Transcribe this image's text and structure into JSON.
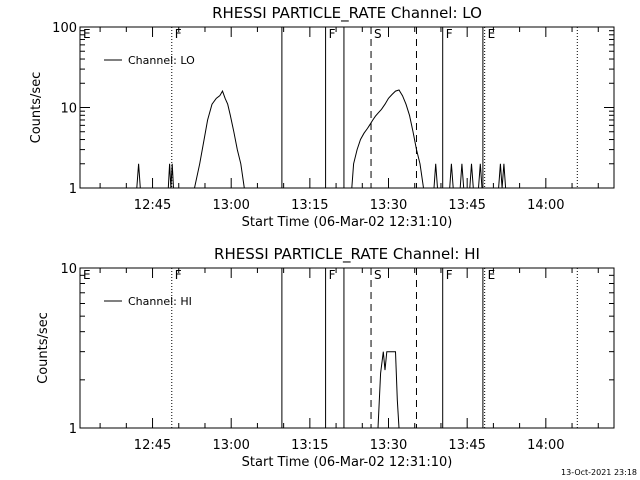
{
  "footer": {
    "timestamp": "13-Oct-2021 23:18"
  },
  "x_axis": {
    "label": "Start Time (06-Mar-02 12:31:10)",
    "tick_labels": [
      "12:45",
      "13:00",
      "13:15",
      "13:30",
      "13:45",
      "14:00"
    ]
  },
  "chart_data": [
    {
      "type": "line",
      "title": "RHESSI PARTICLE_RATE Channel: LO",
      "xlabel": "Start Time (06-Mar-02 12:31:10)",
      "ylabel": "Counts/sec",
      "y_scale": "log",
      "ylim": [
        1,
        100
      ],
      "y_tick_labels": [
        "1",
        "10",
        "100"
      ],
      "xlim": [
        "12:31:10",
        "14:13:00"
      ],
      "x_tick_labels": [
        "12:45",
        "13:00",
        "13:15",
        "13:30",
        "13:45",
        "14:00"
      ],
      "series": [
        {
          "name": "Channel: LO",
          "points": [
            [
              "12:42:00",
              1
            ],
            [
              "12:42:20",
              2
            ],
            [
              "12:42:40",
              1
            ],
            [
              "12:48:00",
              1
            ],
            [
              "12:48:15",
              2
            ],
            [
              "12:48:30",
              1
            ],
            [
              "12:48:45",
              2
            ],
            [
              "12:49:00",
              1
            ],
            [
              "12:53:00",
              1
            ],
            [
              "12:54:00",
              2
            ],
            [
              "12:54:50",
              4
            ],
            [
              "12:55:30",
              7
            ],
            [
              "12:56:20",
              11
            ],
            [
              "12:57:10",
              13
            ],
            [
              "12:57:50",
              14
            ],
            [
              "12:58:20",
              16
            ],
            [
              "12:58:50",
              13
            ],
            [
              "12:59:20",
              11
            ],
            [
              "12:59:50",
              8
            ],
            [
              "13:00:30",
              5
            ],
            [
              "13:01:10",
              3
            ],
            [
              "13:01:50",
              2
            ],
            [
              "13:02:30",
              1
            ],
            [
              "13:23:00",
              1
            ],
            [
              "13:23:20",
              2
            ],
            [
              "13:24:00",
              3
            ],
            [
              "13:24:40",
              4
            ],
            [
              "13:25:20",
              4.8
            ],
            [
              "13:26:00",
              5.5
            ],
            [
              "13:26:30",
              6.2
            ],
            [
              "13:27:00",
              7
            ],
            [
              "13:27:30",
              7.8
            ],
            [
              "13:28:00",
              8.5
            ],
            [
              "13:28:40",
              9.5
            ],
            [
              "13:29:20",
              11
            ],
            [
              "13:30:00",
              13
            ],
            [
              "13:30:40",
              14.5
            ],
            [
              "13:31:20",
              16
            ],
            [
              "13:32:00",
              16.5
            ],
            [
              "13:32:40",
              14
            ],
            [
              "13:33:20",
              11
            ],
            [
              "13:34:00",
              8
            ],
            [
              "13:34:40",
              5
            ],
            [
              "13:35:20",
              3
            ],
            [
              "13:36:00",
              2
            ],
            [
              "13:36:40",
              1
            ],
            [
              "13:38:40",
              1
            ],
            [
              "13:39:00",
              2
            ],
            [
              "13:39:20",
              1
            ],
            [
              "13:41:40",
              1
            ],
            [
              "13:42:00",
              2
            ],
            [
              "13:42:20",
              1
            ],
            [
              "13:43:40",
              1
            ],
            [
              "13:44:00",
              2
            ],
            [
              "13:44:20",
              1
            ],
            [
              "13:45:30",
              1
            ],
            [
              "13:45:50",
              2
            ],
            [
              "13:46:10",
              1
            ],
            [
              "13:47:10",
              1
            ],
            [
              "13:47:30",
              2
            ],
            [
              "13:47:50",
              1
            ],
            [
              "13:51:00",
              1
            ],
            [
              "13:51:20",
              2
            ],
            [
              "13:51:40",
              1
            ],
            [
              "13:52:00",
              2
            ],
            [
              "13:52:20",
              1
            ]
          ]
        }
      ],
      "markers": [
        {
          "label": "E",
          "time": "12:31:10",
          "style": "dotted"
        },
        {
          "label": "F",
          "time": "12:48:40",
          "style": "dotted"
        },
        {
          "label": "",
          "time": "13:09:40",
          "style": "solid"
        },
        {
          "label": "F",
          "time": "13:18:00",
          "style": "solid"
        },
        {
          "label": "",
          "time": "13:21:30",
          "style": "solid"
        },
        {
          "label": "S",
          "time": "13:26:40",
          "style": "dashed"
        },
        {
          "label": "",
          "time": "13:35:20",
          "style": "dashed"
        },
        {
          "label": "F",
          "time": "13:40:20",
          "style": "solid"
        },
        {
          "label": "",
          "time": "13:48:00",
          "style": "solid"
        },
        {
          "label": "E",
          "time": "13:48:20",
          "style": "dotted"
        },
        {
          "label": "",
          "time": "14:06:00",
          "style": "dotted"
        }
      ]
    },
    {
      "type": "line",
      "title": "RHESSI PARTICLE_RATE Channel: HI",
      "xlabel": "Start Time (06-Mar-02 12:31:10)",
      "ylabel": "Counts/sec",
      "y_scale": "log",
      "ylim": [
        1,
        10
      ],
      "y_tick_labels": [
        "1",
        "10"
      ],
      "xlim": [
        "12:31:10",
        "14:13:00"
      ],
      "x_tick_labels": [
        "12:45",
        "13:00",
        "13:15",
        "13:30",
        "13:45",
        "14:00"
      ],
      "series": [
        {
          "name": "Channel: HI",
          "points": [
            [
              "13:28:00",
              1
            ],
            [
              "13:28:30",
              2.2
            ],
            [
              "13:29:00",
              3
            ],
            [
              "13:29:20",
              2.3
            ],
            [
              "13:29:40",
              3
            ],
            [
              "13:31:20",
              3
            ],
            [
              "13:31:40",
              1.5
            ],
            [
              "13:32:00",
              1
            ]
          ]
        }
      ],
      "markers": [
        {
          "label": "E",
          "time": "12:31:10",
          "style": "dotted"
        },
        {
          "label": "F",
          "time": "12:48:40",
          "style": "dotted"
        },
        {
          "label": "",
          "time": "13:09:40",
          "style": "solid"
        },
        {
          "label": "F",
          "time": "13:18:00",
          "style": "solid"
        },
        {
          "label": "",
          "time": "13:21:30",
          "style": "solid"
        },
        {
          "label": "S",
          "time": "13:26:40",
          "style": "dashed"
        },
        {
          "label": "",
          "time": "13:35:20",
          "style": "dashed"
        },
        {
          "label": "F",
          "time": "13:40:20",
          "style": "solid"
        },
        {
          "label": "",
          "time": "13:48:00",
          "style": "solid"
        },
        {
          "label": "E",
          "time": "13:48:20",
          "style": "dotted"
        },
        {
          "label": "",
          "time": "14:06:00",
          "style": "dotted"
        }
      ]
    }
  ]
}
